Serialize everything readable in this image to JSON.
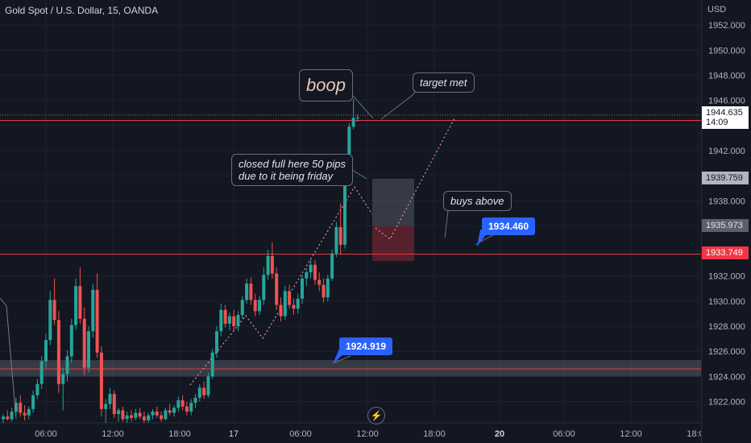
{
  "header": {
    "title": "Gold Spot / U.S. Dollar, 15, OANDA",
    "currency": "USD"
  },
  "chart_data": {
    "type": "candlestick",
    "y_ticks": [
      1952,
      1950,
      1948,
      1946,
      1944,
      1942,
      1940,
      1938,
      1936,
      1934,
      1932,
      1930,
      1928,
      1926,
      1924,
      1922
    ],
    "y_tick_labels": [
      "1952.000",
      "1950.000",
      "1948.000",
      "1946.000",
      "",
      "1942.000",
      "",
      "1938.000",
      "",
      "",
      "1932.000",
      "1930.000",
      "1928.000",
      "1926.000",
      "1924.000",
      "1922.000"
    ],
    "x_ticks": [
      "06:00",
      "12:00",
      "18:00",
      "17",
      "06:00",
      "12:00",
      "18:00",
      "20",
      "06:00",
      "12:00",
      "18:00"
    ],
    "ylim": [
      1920.3,
      1954.0
    ],
    "current_price": {
      "value": 1944.635,
      "label": "1944.635",
      "countdown": "14:09"
    },
    "price_tags": [
      {
        "value": 1939.759,
        "label": "1939.759",
        "style": "grey"
      },
      {
        "value": 1935.973,
        "label": "1935.973",
        "style": "darkgrey"
      },
      {
        "value": 1933.749,
        "label": "1933.749",
        "style": "red"
      }
    ],
    "horizontal_lines": [
      {
        "value": 1944.4,
        "color": "#f23645"
      },
      {
        "value": 1933.75,
        "color": "#f23645"
      },
      {
        "value": 1924.6,
        "color": "#f23645"
      }
    ],
    "zone": {
      "from": 1924.0,
      "to": 1925.3,
      "color": "#787b86"
    },
    "position": {
      "entry": 1935.973,
      "target": 1939.759,
      "stop": 1933.2
    },
    "callouts": [
      {
        "value": 1934.46,
        "label": "1934.460"
      },
      {
        "value": 1924.919,
        "label": "1924.919"
      }
    ],
    "candles": [
      [
        1920.6,
        1921.0,
        1920.3,
        1920.8
      ],
      [
        1920.8,
        1921.3,
        1920.5,
        1920.6
      ],
      [
        1920.6,
        1921.5,
        1920.4,
        1921.2
      ],
      [
        1921.2,
        1922.3,
        1920.9,
        1921.9
      ],
      [
        1921.9,
        1922.5,
        1920.8,
        1921.1
      ],
      [
        1921.1,
        1921.7,
        1920.5,
        1920.9
      ],
      [
        1920.9,
        1921.6,
        1920.6,
        1921.4
      ],
      [
        1921.4,
        1922.9,
        1921.1,
        1922.5
      ],
      [
        1922.5,
        1923.8,
        1922.2,
        1923.4
      ],
      [
        1923.4,
        1925.6,
        1923.0,
        1925.2
      ],
      [
        1925.2,
        1927.4,
        1924.7,
        1926.9
      ],
      [
        1926.9,
        1930.8,
        1926.5,
        1930.1
      ],
      [
        1930.1,
        1931.8,
        1928.1,
        1928.5
      ],
      [
        1928.5,
        1929.2,
        1922.7,
        1923.4
      ],
      [
        1923.4,
        1924.7,
        1921.3,
        1924.2
      ],
      [
        1924.2,
        1926.1,
        1923.6,
        1925.6
      ],
      [
        1925.6,
        1928.6,
        1925.1,
        1928.1
      ],
      [
        1928.1,
        1931.8,
        1927.7,
        1931.2
      ],
      [
        1931.2,
        1932.7,
        1928.2,
        1928.6
      ],
      [
        1928.6,
        1929.5,
        1924.1,
        1924.7
      ],
      [
        1924.7,
        1928.0,
        1924.3,
        1927.6
      ],
      [
        1927.6,
        1931.4,
        1927.1,
        1930.9
      ],
      [
        1930.9,
        1932.2,
        1925.5,
        1925.9
      ],
      [
        1925.9,
        1926.4,
        1920.8,
        1921.4
      ],
      [
        1921.4,
        1922.2,
        1920.3,
        1921.8
      ],
      [
        1921.8,
        1923.1,
        1921.4,
        1922.6
      ],
      [
        1922.6,
        1922.9,
        1920.7,
        1921.0
      ],
      [
        1921.0,
        1921.5,
        1920.4,
        1921.3
      ],
      [
        1921.3,
        1921.6,
        1920.4,
        1920.6
      ],
      [
        1920.6,
        1921.2,
        1920.3,
        1920.9
      ],
      [
        1920.9,
        1921.3,
        1920.4,
        1920.7
      ],
      [
        1920.7,
        1921.4,
        1920.5,
        1921.1
      ],
      [
        1921.1,
        1921.5,
        1920.6,
        1920.8
      ],
      [
        1920.8,
        1921.2,
        1920.3,
        1920.5
      ],
      [
        1920.5,
        1921.1,
        1920.3,
        1920.9
      ],
      [
        1920.9,
        1921.4,
        1920.6,
        1921.2
      ],
      [
        1921.2,
        1921.6,
        1920.7,
        1920.9
      ],
      [
        1920.9,
        1921.2,
        1920.4,
        1920.6
      ],
      [
        1920.6,
        1921.5,
        1920.5,
        1921.3
      ],
      [
        1921.3,
        1921.8,
        1920.9,
        1921.1
      ],
      [
        1921.1,
        1921.7,
        1920.8,
        1921.5
      ],
      [
        1921.5,
        1922.4,
        1921.2,
        1922.1
      ],
      [
        1922.1,
        1922.5,
        1921.3,
        1921.6
      ],
      [
        1921.6,
        1922.0,
        1920.9,
        1921.2
      ],
      [
        1921.2,
        1922.2,
        1920.9,
        1921.9
      ],
      [
        1921.9,
        1922.6,
        1921.5,
        1922.3
      ],
      [
        1922.3,
        1923.4,
        1922.0,
        1923.1
      ],
      [
        1923.1,
        1923.6,
        1922.2,
        1922.5
      ],
      [
        1922.5,
        1924.3,
        1922.3,
        1924.0
      ],
      [
        1924.0,
        1926.2,
        1923.8,
        1925.9
      ],
      [
        1925.9,
        1928.0,
        1925.5,
        1927.6
      ],
      [
        1927.6,
        1929.8,
        1927.2,
        1929.3
      ],
      [
        1929.3,
        1929.7,
        1927.9,
        1928.2
      ],
      [
        1928.2,
        1929.1,
        1927.7,
        1928.8
      ],
      [
        1928.8,
        1929.3,
        1927.6,
        1928.0
      ],
      [
        1928.0,
        1929.2,
        1927.6,
        1928.9
      ],
      [
        1928.9,
        1930.4,
        1928.6,
        1930.1
      ],
      [
        1930.1,
        1931.8,
        1929.8,
        1931.4
      ],
      [
        1931.4,
        1931.9,
        1929.7,
        1930.1
      ],
      [
        1930.1,
        1930.6,
        1928.8,
        1929.2
      ],
      [
        1929.2,
        1930.4,
        1928.9,
        1930.1
      ],
      [
        1930.1,
        1932.7,
        1929.7,
        1932.1
      ],
      [
        1932.1,
        1934.1,
        1931.7,
        1933.6
      ],
      [
        1933.6,
        1934.7,
        1931.8,
        1932.2
      ],
      [
        1932.2,
        1932.7,
        1929.3,
        1929.7
      ],
      [
        1929.7,
        1930.3,
        1928.4,
        1928.8
      ],
      [
        1928.8,
        1931.2,
        1928.5,
        1930.8
      ],
      [
        1930.8,
        1931.3,
        1929.4,
        1929.7
      ],
      [
        1929.7,
        1930.2,
        1928.9,
        1929.4
      ],
      [
        1929.4,
        1930.6,
        1929.0,
        1930.2
      ],
      [
        1930.2,
        1932.1,
        1929.8,
        1931.8
      ],
      [
        1931.8,
        1932.6,
        1931.2,
        1932.3
      ],
      [
        1932.3,
        1933.3,
        1931.8,
        1932.9
      ],
      [
        1932.9,
        1933.3,
        1931.3,
        1931.7
      ],
      [
        1931.7,
        1932.3,
        1930.8,
        1931.3
      ],
      [
        1931.3,
        1931.8,
        1929.9,
        1930.3
      ],
      [
        1930.3,
        1932.1,
        1930.0,
        1931.8
      ],
      [
        1931.8,
        1934.1,
        1931.6,
        1933.8
      ],
      [
        1933.8,
        1936.3,
        1933.5,
        1935.9
      ],
      [
        1935.9,
        1937.8,
        1933.7,
        1934.5
      ],
      [
        1934.5,
        1940.2,
        1934.2,
        1939.9
      ],
      [
        1939.9,
        1944.2,
        1939.5,
        1943.9
      ],
      [
        1943.9,
        1946.1,
        1943.7,
        1944.6
      ],
      [
        1944.6,
        1944.9,
        1944.3,
        1944.635
      ]
    ]
  },
  "annotations": {
    "boop": "boop",
    "target": "target met",
    "closed_line1": "closed full here 50 pips",
    "closed_line2": "due to it being friday",
    "buys": "buys above"
  },
  "colors": {
    "up": "#26a69a",
    "down": "#ef5350",
    "background": "#131722"
  }
}
